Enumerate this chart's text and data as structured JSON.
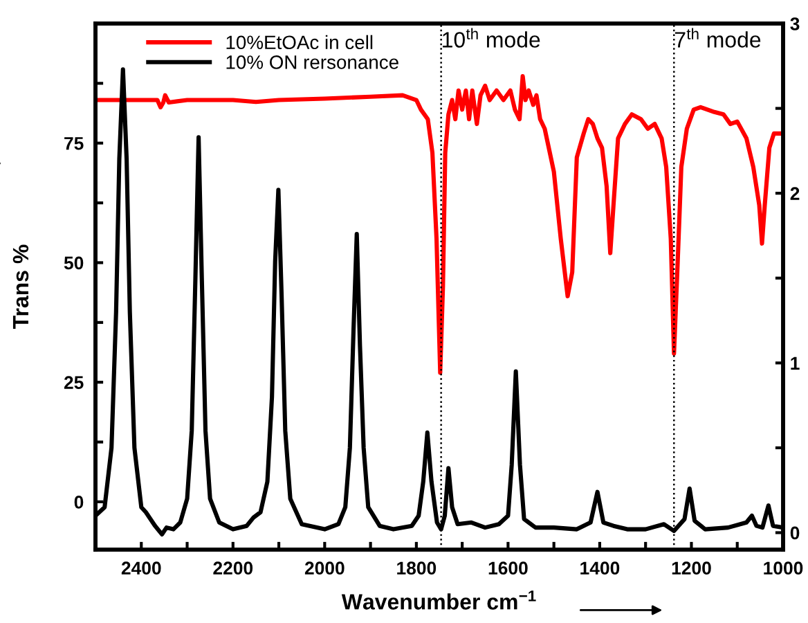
{
  "chart_data": {
    "type": "line",
    "xlabel": "Wavenumber cm$^{−1}$",
    "ylabel": "Trans %",
    "xlim": [
      2500,
      1000
    ],
    "xticks": [
      {
        "value": 2500,
        "label": null
      },
      2400,
      {
        "value": 2300,
        "label": null
      },
      2200,
      {
        "value": 2100,
        "label": null
      },
      2000,
      {
        "value": 1900,
        "label": null
      },
      1800,
      {
        "value": 1700,
        "label": null
      },
      1600,
      {
        "value": 1500,
        "label": null
      },
      1400,
      {
        "value": 1300,
        "label": null
      },
      1200,
      {
        "value": 1100,
        "label": null
      },
      1000
    ],
    "ylim": [
      -10,
      100
    ],
    "yticks": [
      0,
      {
        "value": 12.5,
        "label": null
      },
      25,
      {
        "value": 37.5,
        "label": null
      },
      50,
      {
        "value": 62.5,
        "label": null
      },
      75,
      {
        "value": 87.5,
        "label": null
      }
    ],
    "y2lim": [
      -0.1,
      3
    ],
    "y2ticks": [
      0,
      {
        "value": 0.5,
        "label": null
      },
      1,
      {
        "value": 1.5,
        "label": null
      },
      2,
      {
        "value": 2.5,
        "label": null
      },
      3
    ],
    "legend": "top left",
    "grid": false,
    "line_style": "solid",
    "marker": "none",
    "ref_lines": [
      {
        "axis": "x",
        "value": 1746,
        "label": "10$^{th}$ mode",
        "color": "#000000",
        "line_style": "dotted"
      },
      {
        "axis": "x",
        "value": 1238,
        "label": "7$^{th}$ mode",
        "color": "#000000",
        "line_style": "dotted"
      }
    ],
    "series": [
      {
        "name": "10%EtOAc in cell",
        "color": "#ff0000",
        "x": [
          2500,
          2450,
          2400,
          2365,
          2358,
          2352,
          2348,
          2340,
          2300,
          2200,
          2150,
          2100,
          2000,
          1900,
          1830,
          1815,
          1800,
          1790,
          1775,
          1765,
          1756,
          1748,
          1742,
          1737,
          1730,
          1722,
          1715,
          1708,
          1700,
          1692,
          1685,
          1678,
          1668,
          1660,
          1650,
          1640,
          1625,
          1610,
          1595,
          1585,
          1575,
          1568,
          1562,
          1555,
          1545,
          1538,
          1530,
          1520,
          1500,
          1485,
          1470,
          1460,
          1450,
          1435,
          1425,
          1415,
          1405,
          1395,
          1385,
          1377,
          1370,
          1360,
          1345,
          1330,
          1310,
          1295,
          1280,
          1265,
          1255,
          1245,
          1238,
          1230,
          1222,
          1210,
          1195,
          1180,
          1150,
          1130,
          1115,
          1100,
          1080,
          1065,
          1052,
          1046,
          1040,
          1030,
          1020,
          1000
        ],
        "values": [
          84,
          84,
          84,
          84,
          82.5,
          83.5,
          85,
          83.5,
          84,
          84,
          83.6,
          84,
          84.3,
          84.7,
          85,
          84.5,
          84,
          82,
          80,
          73,
          55,
          27,
          45,
          73,
          81,
          84,
          80,
          86,
          82,
          86,
          80,
          86,
          79,
          85,
          87,
          84,
          86,
          84,
          86,
          82,
          80,
          89,
          84,
          86,
          83,
          85,
          80,
          78,
          69,
          55,
          43,
          48,
          72,
          77,
          80,
          79,
          76,
          74,
          66,
          52,
          62,
          76,
          79,
          81,
          80,
          78,
          79,
          76,
          70,
          55,
          31,
          50,
          70,
          78,
          82,
          82.5,
          81.5,
          81,
          79,
          79.5,
          76,
          70,
          62,
          54,
          62,
          74,
          77,
          77
        ]
      },
      {
        "name": "10% ON rersonance",
        "color": "#000000",
        "axis": "y2",
        "x": [
          2500,
          2480,
          2465,
          2455,
          2448,
          2440,
          2432,
          2425,
          2415,
          2400,
          2390,
          2370,
          2355,
          2345,
          2330,
          2315,
          2300,
          2290,
          2282,
          2275,
          2268,
          2260,
          2250,
          2230,
          2200,
          2170,
          2155,
          2140,
          2125,
          2115,
          2108,
          2101,
          2094,
          2086,
          2075,
          2050,
          2000,
          1970,
          1955,
          1945,
          1937,
          1930,
          1923,
          1915,
          1905,
          1880,
          1850,
          1810,
          1795,
          1785,
          1776,
          1767,
          1755,
          1746,
          1738,
          1730,
          1722,
          1710,
          1680,
          1650,
          1620,
          1600,
          1592,
          1583,
          1574,
          1565,
          1540,
          1500,
          1450,
          1420,
          1405,
          1392,
          1370,
          1340,
          1300,
          1260,
          1238,
          1215,
          1204,
          1193,
          1170,
          1120,
          1080,
          1068,
          1058,
          1045,
          1032,
          1022,
          1000
        ],
        "values": [
          0.1,
          0.15,
          0.5,
          1.3,
          2.2,
          2.73,
          2.2,
          1.3,
          0.5,
          0.15,
          0.12,
          0.04,
          -0.01,
          0.03,
          0.02,
          0.06,
          0.2,
          0.6,
          1.5,
          2.33,
          1.5,
          0.6,
          0.2,
          0.06,
          0.02,
          0.04,
          0.09,
          0.12,
          0.3,
          0.8,
          1.6,
          2.02,
          1.4,
          0.6,
          0.2,
          0.05,
          0.02,
          0.05,
          0.15,
          0.5,
          1.2,
          1.76,
          1.1,
          0.5,
          0.15,
          0.04,
          0.02,
          0.04,
          0.1,
          0.3,
          0.59,
          0.3,
          0.06,
          0.02,
          0.1,
          0.38,
          0.15,
          0.05,
          0.06,
          0.03,
          0.05,
          0.1,
          0.4,
          0.95,
          0.4,
          0.08,
          0.03,
          0.03,
          0.02,
          0.06,
          0.24,
          0.06,
          0.04,
          0.02,
          0.02,
          0.05,
          0.01,
          0.08,
          0.26,
          0.07,
          0.02,
          0.03,
          0.06,
          0.1,
          0.04,
          0.03,
          0.16,
          0.04,
          0.03
        ]
      }
    ]
  }
}
